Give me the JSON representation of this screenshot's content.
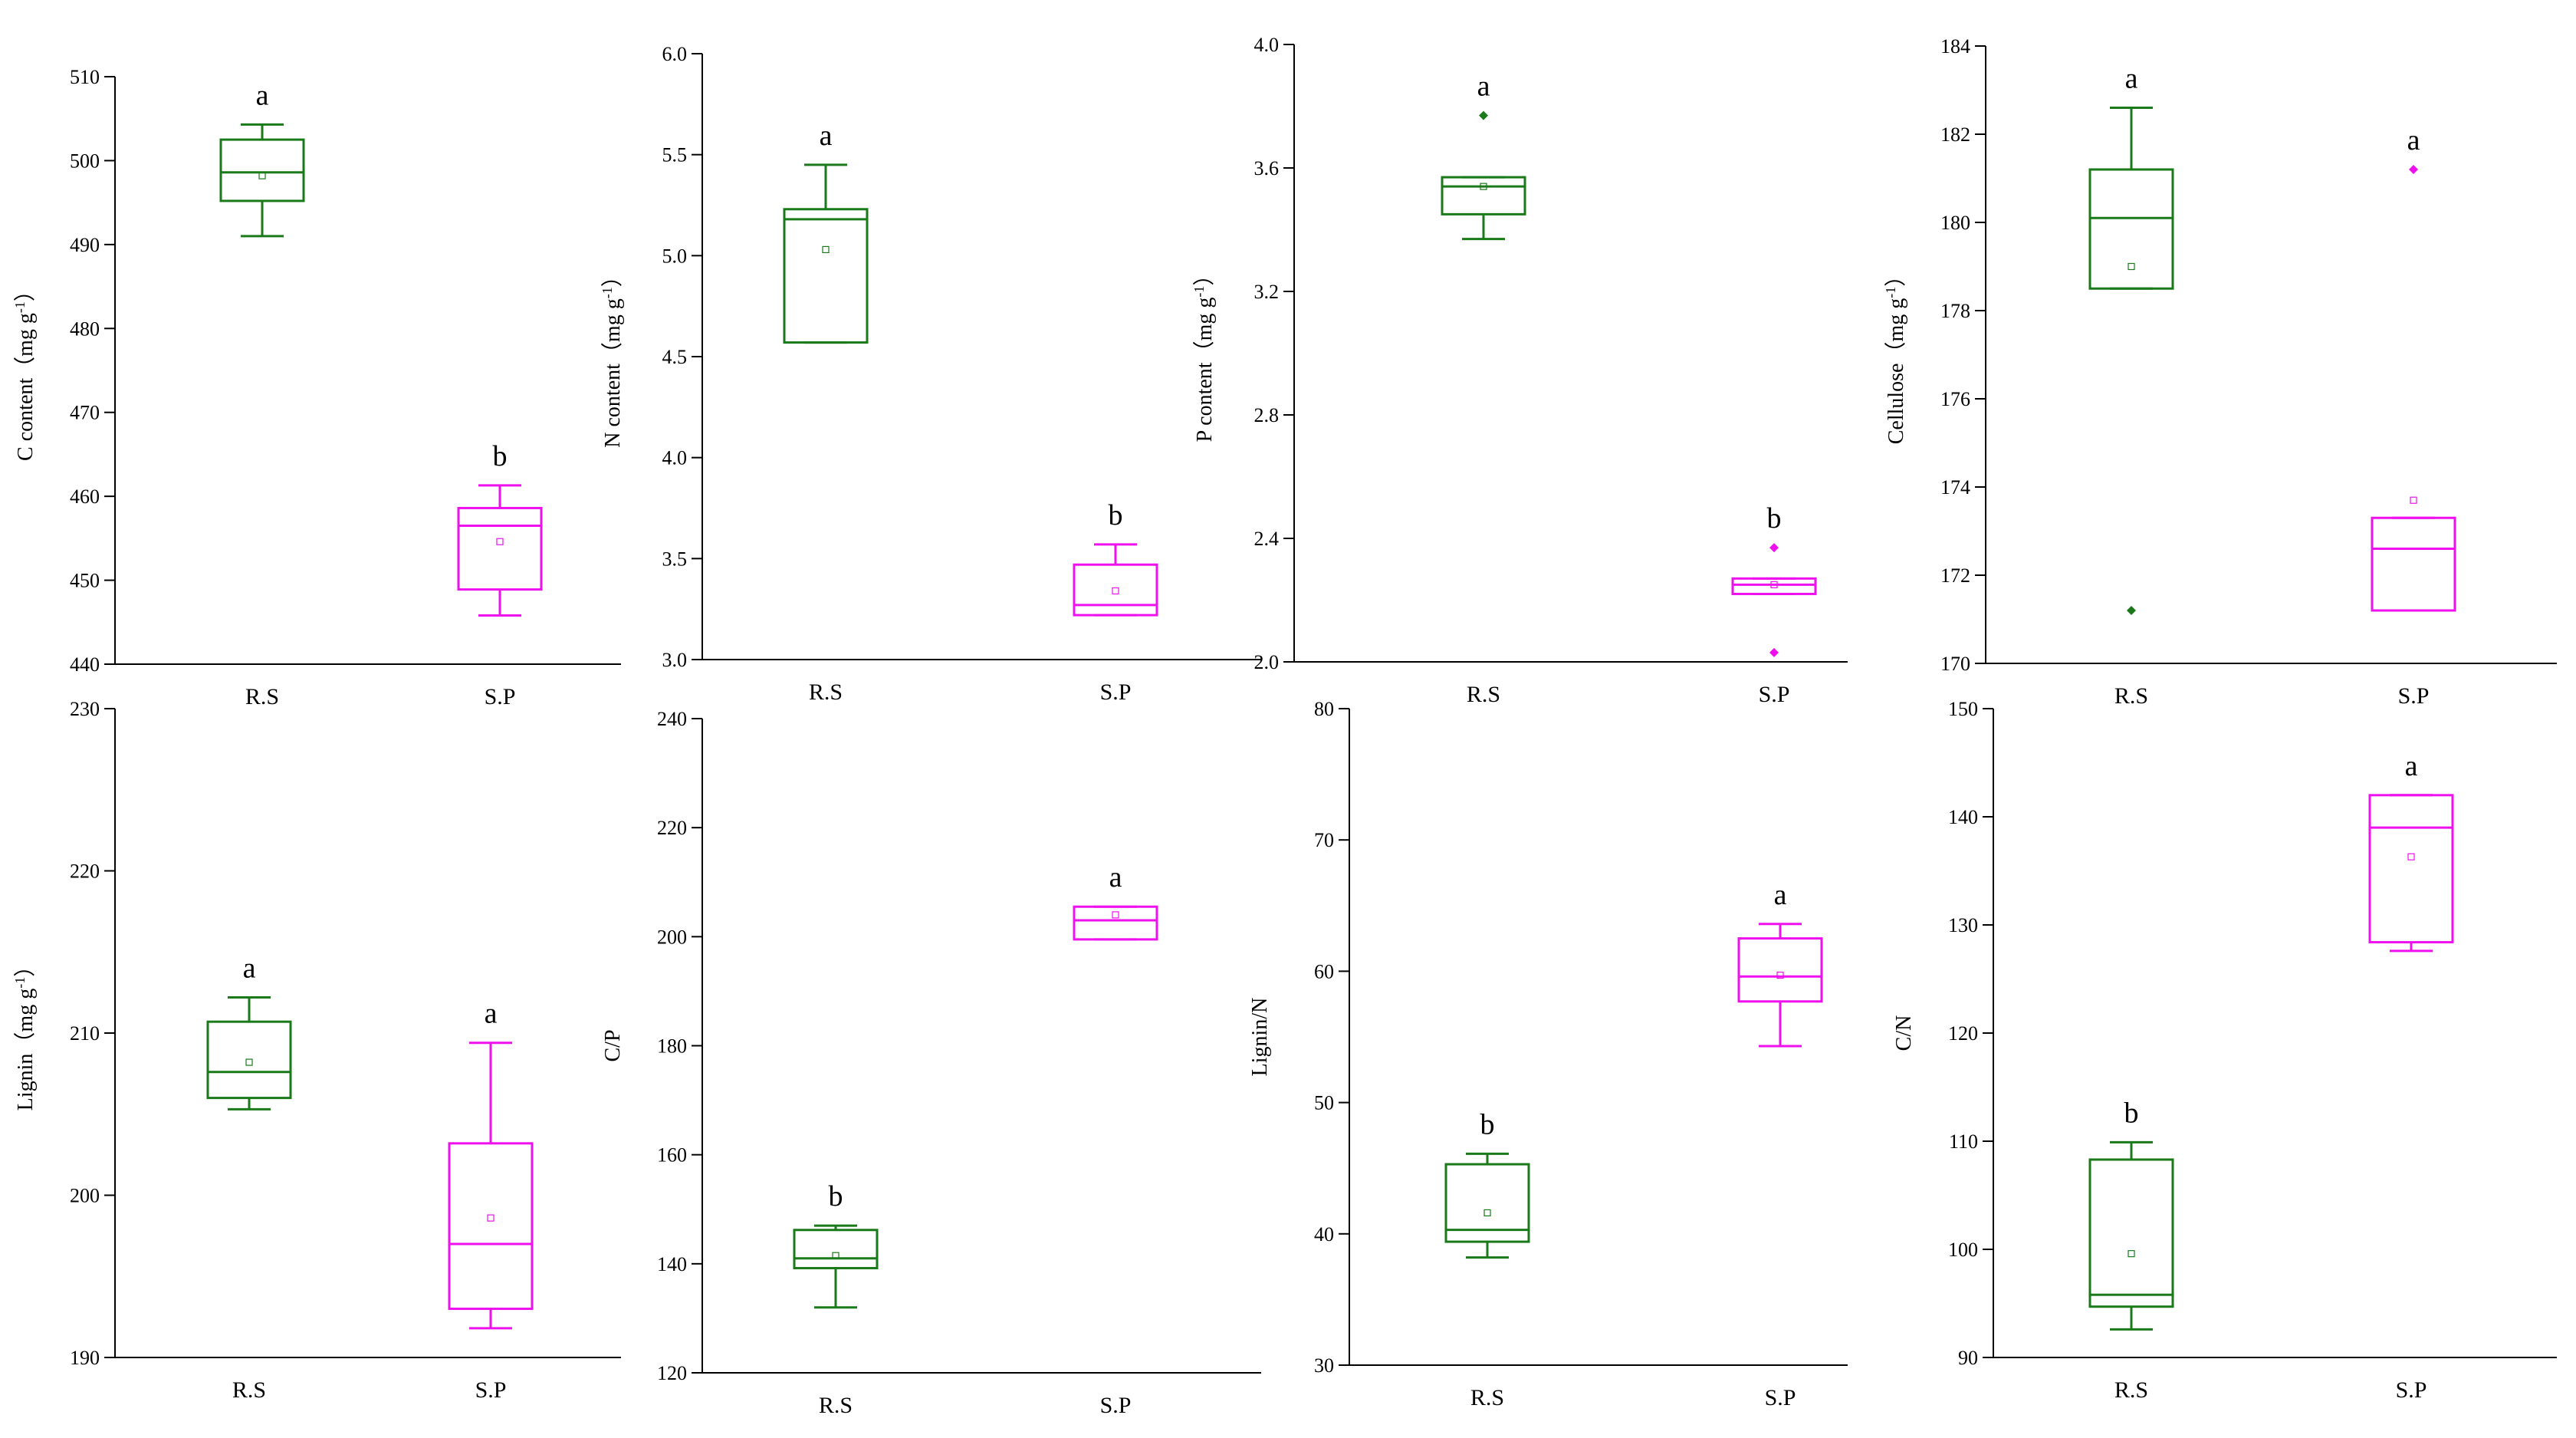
{
  "figure": {
    "groups": [
      "R.S",
      "S.P"
    ],
    "colors": {
      "R.S": "#1a7a1a",
      "S.P": "#ee11ee"
    }
  },
  "chart_data": [
    {
      "type": "box",
      "id": "c",
      "ylabel": "C content（mg g",
      "ylabel_sup": "-1",
      "ylabel_tail": "）",
      "ylim": [
        440,
        510
      ],
      "yticks": [
        440,
        450,
        460,
        470,
        480,
        490,
        500,
        510
      ],
      "tick_decimals": 0,
      "boxes": [
        {
          "group": "R.S",
          "whisker_low": 491,
          "q1": 495.2,
          "median": 498.6,
          "q3": 502.5,
          "whisker_high": 504.3,
          "mean": 498.2,
          "outliers": [],
          "letter": "a"
        },
        {
          "group": "S.P",
          "whisker_low": 445.8,
          "q1": 448.9,
          "median": 456.5,
          "q3": 458.6,
          "whisker_high": 461.3,
          "mean": 454.6,
          "outliers": [],
          "letter": "b"
        }
      ]
    },
    {
      "type": "box",
      "id": "n",
      "ylabel": "N content（mg g",
      "ylabel_sup": "-1",
      "ylabel_tail": "）",
      "ylim": [
        3.0,
        6.0
      ],
      "yticks": [
        3.0,
        3.5,
        4.0,
        4.5,
        5.0,
        5.5,
        6.0
      ],
      "tick_decimals": 1,
      "boxes": [
        {
          "group": "R.S",
          "whisker_low": 4.57,
          "q1": 4.57,
          "median": 5.18,
          "q3": 5.23,
          "whisker_high": 5.45,
          "mean": 5.03,
          "outliers": [],
          "letter": "a"
        },
        {
          "group": "S.P",
          "whisker_low": 3.22,
          "q1": 3.22,
          "median": 3.27,
          "q3": 3.47,
          "whisker_high": 3.57,
          "mean": 3.34,
          "outliers": [],
          "letter": "b"
        }
      ]
    },
    {
      "type": "box",
      "id": "p",
      "ylabel": "P content（mg g",
      "ylabel_sup": "-1",
      "ylabel_tail": "）",
      "ylim": [
        2.0,
        4.0
      ],
      "yticks": [
        2.0,
        2.4,
        2.8,
        3.2,
        3.6,
        4.0
      ],
      "tick_decimals": 1,
      "boxes": [
        {
          "group": "R.S",
          "whisker_low": 3.37,
          "q1": 3.45,
          "median": 3.54,
          "q3": 3.57,
          "whisker_high": 3.57,
          "mean": 3.54,
          "outliers": [
            3.77
          ],
          "letter": "a"
        },
        {
          "group": "S.P",
          "whisker_low": 2.22,
          "q1": 2.22,
          "median": 2.25,
          "q3": 2.27,
          "whisker_high": 2.27,
          "mean": 2.25,
          "outliers": [
            2.37,
            2.03
          ],
          "letter": "b"
        }
      ]
    },
    {
      "type": "box",
      "id": "cellulose",
      "ylabel": "Cellulose（mg g",
      "ylabel_sup": "-1",
      "ylabel_tail": "）",
      "ylim": [
        170,
        184
      ],
      "yticks": [
        170,
        172,
        174,
        176,
        178,
        180,
        182,
        184
      ],
      "tick_decimals": 0,
      "boxes": [
        {
          "group": "R.S",
          "whisker_low": 178.5,
          "q1": 178.5,
          "median": 180.1,
          "q3": 181.2,
          "whisker_high": 182.6,
          "mean": 179.0,
          "outliers": [
            171.2
          ],
          "letter": "a"
        },
        {
          "group": "S.P",
          "whisker_low": 171.2,
          "q1": 171.2,
          "median": 172.6,
          "q3": 173.3,
          "whisker_high": 173.3,
          "mean": 173.7,
          "outliers": [
            181.2
          ],
          "letter": "a"
        }
      ]
    },
    {
      "type": "box",
      "id": "lignin",
      "ylabel": "Lignin（mg g",
      "ylabel_sup": "-1",
      "ylabel_tail": "）",
      "ylim": [
        190,
        230
      ],
      "yticks": [
        190,
        200,
        210,
        220,
        230
      ],
      "tick_decimals": 0,
      "boxes": [
        {
          "group": "R.S",
          "whisker_low": 205.3,
          "q1": 206.0,
          "median": 207.6,
          "q3": 210.7,
          "whisker_high": 212.2,
          "mean": 208.2,
          "outliers": [],
          "letter": "a"
        },
        {
          "group": "S.P",
          "whisker_low": 191.8,
          "q1": 193.0,
          "median": 197.0,
          "q3": 203.2,
          "whisker_high": 209.4,
          "mean": 198.6,
          "outliers": [],
          "letter": "a"
        }
      ]
    },
    {
      "type": "box",
      "id": "cp",
      "ylabel": "C/P",
      "ylabel_sup": "",
      "ylabel_tail": "",
      "ylim": [
        120,
        240
      ],
      "yticks": [
        120,
        140,
        160,
        180,
        200,
        220,
        240
      ],
      "tick_decimals": 0,
      "boxes": [
        {
          "group": "R.S",
          "whisker_low": 132,
          "q1": 139.2,
          "median": 141,
          "q3": 146.2,
          "whisker_high": 147,
          "mean": 141.5,
          "outliers": [],
          "letter": "b"
        },
        {
          "group": "S.P",
          "whisker_low": 199.5,
          "q1": 199.5,
          "median": 203,
          "q3": 205.5,
          "whisker_high": 205.5,
          "mean": 204,
          "outliers": [],
          "letter": "a"
        }
      ]
    },
    {
      "type": "box",
      "id": "ligninN",
      "ylabel": "Lignin/N",
      "ylabel_sup": "",
      "ylabel_tail": "",
      "ylim": [
        30,
        80
      ],
      "yticks": [
        30,
        40,
        50,
        60,
        70,
        80
      ],
      "tick_decimals": 0,
      "boxes": [
        {
          "group": "R.S",
          "whisker_low": 38.2,
          "q1": 39.4,
          "median": 40.3,
          "q3": 45.3,
          "whisker_high": 46.1,
          "mean": 41.6,
          "outliers": [],
          "letter": "b"
        },
        {
          "group": "S.P",
          "whisker_low": 54.3,
          "q1": 57.7,
          "median": 59.6,
          "q3": 62.5,
          "whisker_high": 63.6,
          "mean": 59.7,
          "outliers": [],
          "letter": "a"
        }
      ]
    },
    {
      "type": "box",
      "id": "cn",
      "ylabel": "C/N",
      "ylabel_sup": "",
      "ylabel_tail": "",
      "ylim": [
        90,
        150
      ],
      "yticks": [
        90,
        100,
        110,
        120,
        130,
        140,
        150
      ],
      "tick_decimals": 0,
      "boxes": [
        {
          "group": "R.S",
          "whisker_low": 92.6,
          "q1": 94.7,
          "median": 95.8,
          "q3": 108.3,
          "whisker_high": 109.9,
          "mean": 99.6,
          "outliers": [],
          "letter": "b"
        },
        {
          "group": "S.P",
          "whisker_low": 127.6,
          "q1": 128.4,
          "median": 139.0,
          "q3": 142.0,
          "whisker_high": 142.0,
          "mean": 136.3,
          "outliers": [],
          "letter": "a"
        }
      ]
    }
  ]
}
